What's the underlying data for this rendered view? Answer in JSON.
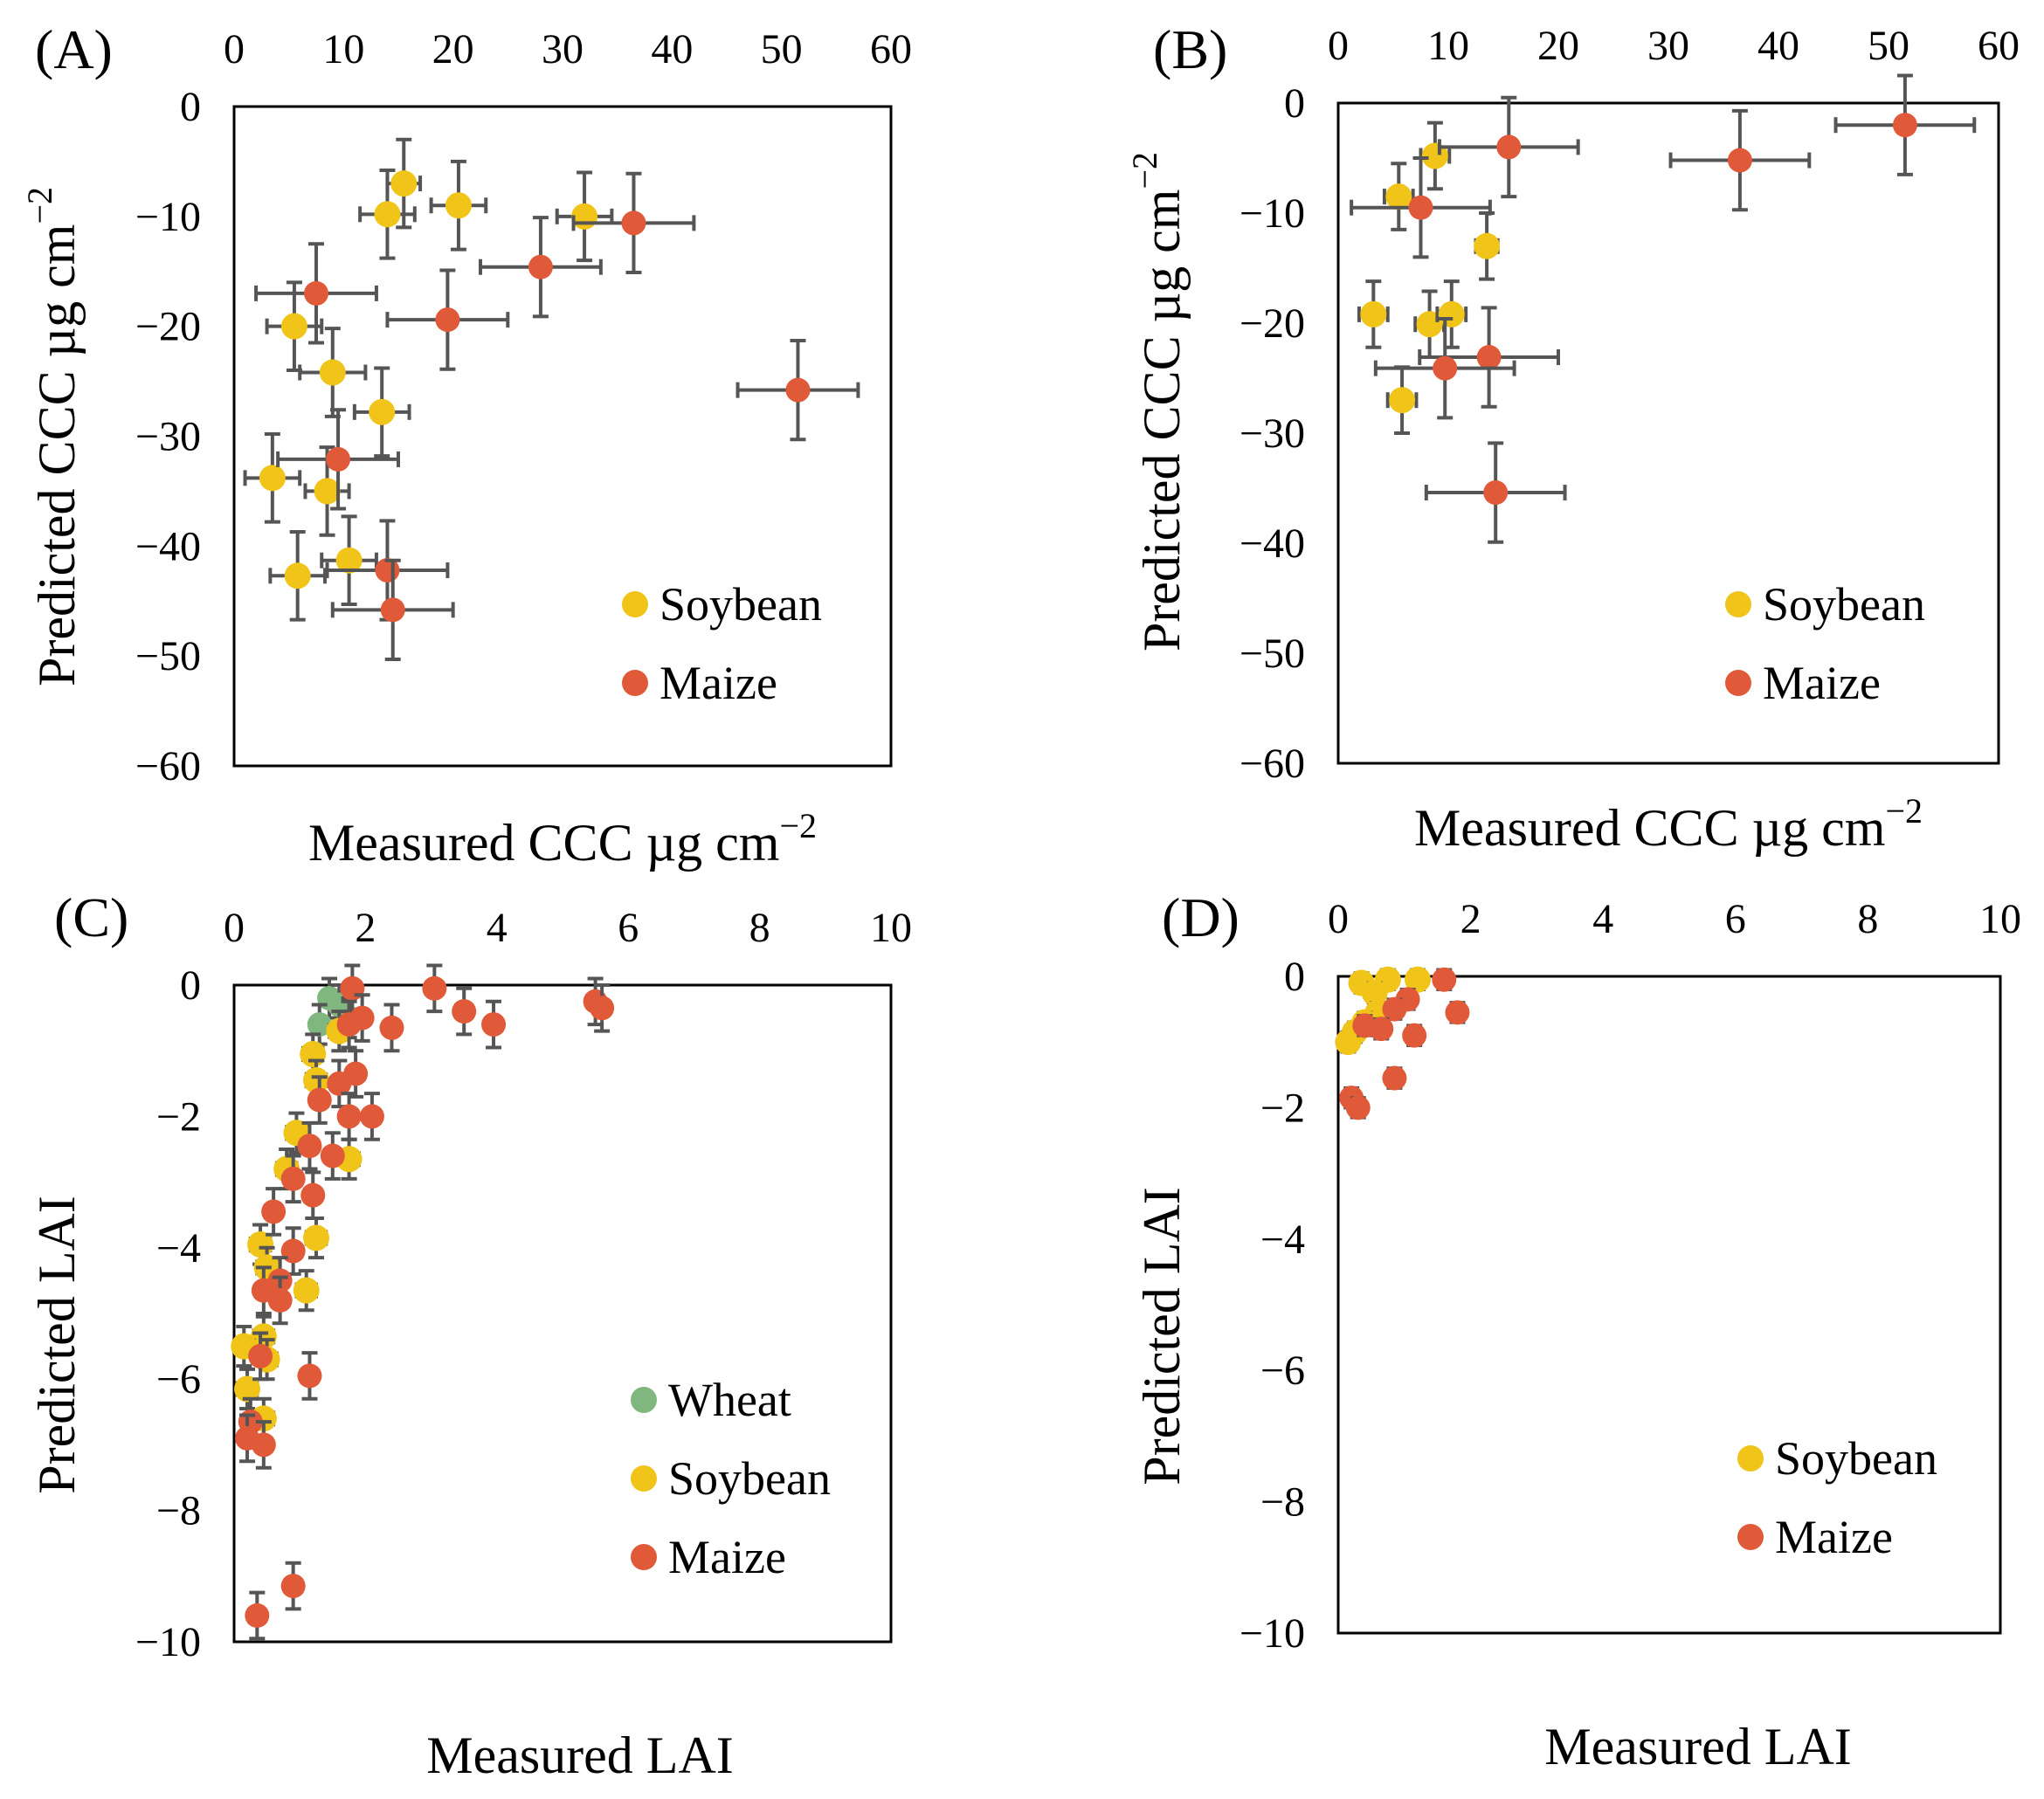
{
  "colors": {
    "wheat": "#7fb77e",
    "soybean": "#f0c419",
    "maize": "#e05a3a",
    "errorbar": "#555555"
  },
  "chart_data": [
    {
      "id": "A",
      "type": "scatter",
      "panel_label": "(A)",
      "xlabel": "Measured CCC µg cm",
      "ylabel": "Predicted CCC µg cm",
      "unit_exponent": "−2",
      "xlim": [
        0,
        60
      ],
      "ylim": [
        -60,
        0
      ],
      "xticks": [
        0,
        10,
        20,
        30,
        40,
        50,
        60
      ],
      "xtick_labels": [
        "0",
        "10",
        "20",
        "30",
        "40",
        "50",
        "60"
      ],
      "yticks": [
        0,
        -10,
        -20,
        -30,
        -40,
        -50,
        -60
      ],
      "ytick_labels": [
        "0",
        "−10",
        "−20",
        "−30",
        "−40",
        "−50",
        "−60"
      ],
      "legend_position": "bottom-right",
      "series": [
        {
          "name": "Soybean",
          "color_key": "soybean",
          "points": [
            {
              "x": 15.5,
              "y": -7,
              "xe": 1.5,
              "ye": 4
            },
            {
              "x": 14,
              "y": -9.8,
              "xe": 2.5,
              "ye": 4
            },
            {
              "x": 20.5,
              "y": -9,
              "xe": 2.5,
              "ye": 4
            },
            {
              "x": 32,
              "y": -10,
              "xe": 2.5,
              "ye": 4
            },
            {
              "x": 5.5,
              "y": -20,
              "xe": 2.5,
              "ye": 4
            },
            {
              "x": 9,
              "y": -24.2,
              "xe": 3,
              "ye": 4
            },
            {
              "x": 13.5,
              "y": -27.8,
              "xe": 2.5,
              "ye": 4
            },
            {
              "x": 3.5,
              "y": -33.8,
              "xe": 2.5,
              "ye": 4
            },
            {
              "x": 8.5,
              "y": -35,
              "xe": 2,
              "ye": 4
            },
            {
              "x": 5.8,
              "y": -42.7,
              "xe": 2.5,
              "ye": 4
            },
            {
              "x": 10.5,
              "y": -41.3,
              "xe": 2.5,
              "ye": 4
            }
          ]
        },
        {
          "name": "Maize",
          "color_key": "maize",
          "points": [
            {
              "x": 36.5,
              "y": -10.6,
              "xe": 5.5,
              "ye": 4.5
            },
            {
              "x": 28,
              "y": -14.6,
              "xe": 5.5,
              "ye": 4.5
            },
            {
              "x": 7.5,
              "y": -17,
              "xe": 5.5,
              "ye": 4.5
            },
            {
              "x": 19.5,
              "y": -19.4,
              "xe": 5.5,
              "ye": 4.5
            },
            {
              "x": 51.5,
              "y": -25.8,
              "xe": 5.5,
              "ye": 4.5
            },
            {
              "x": 9.5,
              "y": -32.1,
              "xe": 5.5,
              "ye": 4.5
            },
            {
              "x": 14,
              "y": -42.2,
              "xe": 5.5,
              "ye": 4.5
            },
            {
              "x": 14.5,
              "y": -45.8,
              "xe": 5.5,
              "ye": 4.5
            }
          ]
        }
      ]
    },
    {
      "id": "B",
      "type": "scatter",
      "panel_label": "(B)",
      "xlabel": "Measured CCC µg cm",
      "ylabel": "Predicted CCC µg cm",
      "unit_exponent": "−2",
      "xlim": [
        0,
        60
      ],
      "ylim": [
        -60,
        0
      ],
      "xticks": [
        0,
        10,
        20,
        30,
        40,
        50,
        60
      ],
      "xtick_labels": [
        "0",
        "10",
        "20",
        "30",
        "40",
        "50",
        "60"
      ],
      "yticks": [
        0,
        -10,
        -20,
        -30,
        -40,
        -50,
        -60
      ],
      "ytick_labels": [
        "0",
        "−10",
        "−20",
        "−30",
        "−40",
        "−50",
        "−60"
      ],
      "legend_position": "bottom-right",
      "series": [
        {
          "name": "Soybean",
          "color_key": "soybean",
          "points": [
            {
              "x": 8.8,
              "y": -4.8,
              "xe": 1.3,
              "ye": 3
            },
            {
              "x": 5.5,
              "y": -8.5,
              "xe": 1.3,
              "ye": 3
            },
            {
              "x": 13.5,
              "y": -13,
              "xe": 1,
              "ye": 3
            },
            {
              "x": 3.2,
              "y": -19.2,
              "xe": 1.3,
              "ye": 3
            },
            {
              "x": 8.3,
              "y": -20.1,
              "xe": 1.3,
              "ye": 3
            },
            {
              "x": 10.3,
              "y": -19.2,
              "xe": 1.3,
              "ye": 3
            },
            {
              "x": 5.8,
              "y": -27,
              "xe": 1.3,
              "ye": 3
            }
          ]
        },
        {
          "name": "Maize",
          "color_key": "maize",
          "points": [
            {
              "x": 51.5,
              "y": -2,
              "xe": 6.3,
              "ye": 4.5
            },
            {
              "x": 15.5,
              "y": -4,
              "xe": 6.3,
              "ye": 4.5
            },
            {
              "x": 36.5,
              "y": -5.2,
              "xe": 6.3,
              "ye": 4.5
            },
            {
              "x": 7.5,
              "y": -9.5,
              "xe": 6.3,
              "ye": 4.5
            },
            {
              "x": 13.7,
              "y": -23.1,
              "xe": 6.3,
              "ye": 4.5
            },
            {
              "x": 9.7,
              "y": -24.1,
              "xe": 6.3,
              "ye": 4.5
            },
            {
              "x": 14.3,
              "y": -35.4,
              "xe": 6.3,
              "ye": 4.5
            }
          ]
        }
      ]
    },
    {
      "id": "C",
      "type": "scatter",
      "panel_label": "(C)",
      "xlabel": "Measured LAI",
      "ylabel": "Predicted LAI",
      "unit_exponent": "",
      "xlim": [
        0,
        10
      ],
      "ylim": [
        -10,
        0
      ],
      "xticks": [
        0,
        2,
        4,
        6,
        8,
        10
      ],
      "xtick_labels": [
        "0",
        "2",
        "4",
        "6",
        "8",
        "10"
      ],
      "yticks": [
        0,
        -2,
        -4,
        -6,
        -8,
        -10
      ],
      "ytick_labels": [
        "0",
        "−2",
        "−4",
        "−6",
        "−8",
        "−10"
      ],
      "legend_position": "bottom-right",
      "series": [
        {
          "name": "Wheat",
          "color_key": "wheat",
          "points": [
            {
              "x": 1.45,
              "y": -0.2,
              "xe": 0.1,
              "ye": 0.3
            },
            {
              "x": 1.6,
              "y": -0.3,
              "xe": 0.1,
              "ye": 0.3
            },
            {
              "x": 1.3,
              "y": -0.6,
              "xe": 0.1,
              "ye": 0.3
            },
            {
              "x": 1.75,
              "y": -0.5,
              "xe": 0.1,
              "ye": 0.3
            }
          ]
        },
        {
          "name": "Soybean",
          "color_key": "soybean",
          "points": [
            {
              "x": 1.6,
              "y": -0.7,
              "xe": 0.15,
              "ye": 0.3
            },
            {
              "x": 1.2,
              "y": -1.05,
              "xe": 0.15,
              "ye": 0.3
            },
            {
              "x": 1.25,
              "y": -1.45,
              "xe": 0.15,
              "ye": 0.3
            },
            {
              "x": 0.95,
              "y": -2.25,
              "xe": 0.15,
              "ye": 0.3
            },
            {
              "x": 0.8,
              "y": -2.8,
              "xe": 0.15,
              "ye": 0.3
            },
            {
              "x": 1.75,
              "y": -2.65,
              "xe": 0.15,
              "ye": 0.3
            },
            {
              "x": 1.25,
              "y": -3.85,
              "xe": 0.15,
              "ye": 0.3
            },
            {
              "x": 0.4,
              "y": -3.95,
              "xe": 0.15,
              "ye": 0.3
            },
            {
              "x": 0.5,
              "y": -4.3,
              "xe": 0.15,
              "ye": 0.3
            },
            {
              "x": 1.1,
              "y": -4.65,
              "xe": 0.15,
              "ye": 0.3
            },
            {
              "x": 0.45,
              "y": -5.35,
              "xe": 0.15,
              "ye": 0.3
            },
            {
              "x": 0.15,
              "y": -5.5,
              "xe": 0.15,
              "ye": 0.3
            },
            {
              "x": 0.5,
              "y": -5.7,
              "xe": 0.15,
              "ye": 0.3
            },
            {
              "x": 0.2,
              "y": -6.15,
              "xe": 0.15,
              "ye": 0.3
            },
            {
              "x": 0.45,
              "y": -6.6,
              "xe": 0.15,
              "ye": 0.3
            }
          ]
        },
        {
          "name": "Maize",
          "color_key": "maize",
          "points": [
            {
              "x": 1.8,
              "y": -0.05,
              "xe": 0.12,
              "ye": 0.35
            },
            {
              "x": 3.05,
              "y": -0.05,
              "xe": 0.12,
              "ye": 0.35
            },
            {
              "x": 5.5,
              "y": -0.25,
              "xe": 0.12,
              "ye": 0.35
            },
            {
              "x": 5.6,
              "y": -0.35,
              "xe": 0.12,
              "ye": 0.35
            },
            {
              "x": 3.5,
              "y": -0.4,
              "xe": 0.12,
              "ye": 0.35
            },
            {
              "x": 3.95,
              "y": -0.6,
              "xe": 0.12,
              "ye": 0.35
            },
            {
              "x": 2.4,
              "y": -0.65,
              "xe": 0.12,
              "ye": 0.35
            },
            {
              "x": 1.95,
              "y": -0.5,
              "xe": 0.12,
              "ye": 0.35
            },
            {
              "x": 1.75,
              "y": -0.6,
              "xe": 0.12,
              "ye": 0.35
            },
            {
              "x": 1.85,
              "y": -1.35,
              "xe": 0.12,
              "ye": 0.35
            },
            {
              "x": 1.6,
              "y": -1.5,
              "xe": 0.12,
              "ye": 0.35
            },
            {
              "x": 1.3,
              "y": -1.75,
              "xe": 0.12,
              "ye": 0.35
            },
            {
              "x": 1.75,
              "y": -2.0,
              "xe": 0.12,
              "ye": 0.35
            },
            {
              "x": 2.1,
              "y": -2.0,
              "xe": 0.12,
              "ye": 0.35
            },
            {
              "x": 1.15,
              "y": -2.45,
              "xe": 0.12,
              "ye": 0.35
            },
            {
              "x": 1.5,
              "y": -2.6,
              "xe": 0.12,
              "ye": 0.35
            },
            {
              "x": 0.9,
              "y": -2.95,
              "xe": 0.12,
              "ye": 0.35
            },
            {
              "x": 1.2,
              "y": -3.2,
              "xe": 0.12,
              "ye": 0.35
            },
            {
              "x": 0.6,
              "y": -3.45,
              "xe": 0.12,
              "ye": 0.35
            },
            {
              "x": 0.9,
              "y": -4.05,
              "xe": 0.12,
              "ye": 0.35
            },
            {
              "x": 0.7,
              "y": -4.5,
              "xe": 0.12,
              "ye": 0.35
            },
            {
              "x": 0.45,
              "y": -4.65,
              "xe": 0.12,
              "ye": 0.35
            },
            {
              "x": 0.7,
              "y": -4.8,
              "xe": 0.12,
              "ye": 0.35
            },
            {
              "x": 0.4,
              "y": -5.65,
              "xe": 0.12,
              "ye": 0.35
            },
            {
              "x": 1.15,
              "y": -5.95,
              "xe": 0.12,
              "ye": 0.35
            },
            {
              "x": 0.25,
              "y": -6.65,
              "xe": 0.12,
              "ye": 0.35
            },
            {
              "x": 0.2,
              "y": -6.9,
              "xe": 0.12,
              "ye": 0.35
            },
            {
              "x": 0.45,
              "y": -7.0,
              "xe": 0.12,
              "ye": 0.35
            },
            {
              "x": 0.9,
              "y": -9.15,
              "xe": 0.12,
              "ye": 0.35
            },
            {
              "x": 0.35,
              "y": -9.6,
              "xe": 0.12,
              "ye": 0.35
            }
          ]
        }
      ]
    },
    {
      "id": "D",
      "type": "scatter",
      "panel_label": "(D)",
      "xlabel": "Measured LAI",
      "ylabel": "Predicted LAI",
      "unit_exponent": "",
      "xlim": [
        0,
        10
      ],
      "ylim": [
        -10,
        0
      ],
      "xticks": [
        0,
        2,
        4,
        6,
        8,
        10
      ],
      "xtick_labels": [
        "0",
        "2",
        "4",
        "6",
        "8",
        "10"
      ],
      "yticks": [
        0,
        -2,
        -4,
        -6,
        -8,
        -10
      ],
      "ytick_labels": [
        "0",
        "−2",
        "−4",
        "−6",
        "−8",
        "−10"
      ],
      "legend_position": "bottom-right",
      "series": [
        {
          "name": "Soybean",
          "color_key": "soybean",
          "points": [
            {
              "x": 0.35,
              "y": -0.1,
              "xe": 0.1,
              "ye": 0.15
            },
            {
              "x": 0.75,
              "y": -0.05,
              "xe": 0.1,
              "ye": 0.15
            },
            {
              "x": 1.2,
              "y": -0.05,
              "xe": 0.1,
              "ye": 0.15
            },
            {
              "x": 0.55,
              "y": -0.25,
              "xe": 0.1,
              "ye": 0.15
            },
            {
              "x": 0.6,
              "y": -0.55,
              "xe": 0.1,
              "ye": 0.15
            },
            {
              "x": 0.4,
              "y": -0.7,
              "xe": 0.1,
              "ye": 0.15
            },
            {
              "x": 0.25,
              "y": -0.85,
              "xe": 0.1,
              "ye": 0.15
            },
            {
              "x": 0.15,
              "y": -1.0,
              "xe": 0.1,
              "ye": 0.15
            }
          ]
        },
        {
          "name": "Maize",
          "color_key": "maize",
          "points": [
            {
              "x": 1.6,
              "y": -0.05,
              "xe": 0.1,
              "ye": 0.15
            },
            {
              "x": 1.05,
              "y": -0.35,
              "xe": 0.1,
              "ye": 0.15
            },
            {
              "x": 0.85,
              "y": -0.5,
              "xe": 0.1,
              "ye": 0.15
            },
            {
              "x": 1.8,
              "y": -0.55,
              "xe": 0.1,
              "ye": 0.15
            },
            {
              "x": 0.4,
              "y": -0.75,
              "xe": 0.1,
              "ye": 0.15
            },
            {
              "x": 0.65,
              "y": -0.8,
              "xe": 0.1,
              "ye": 0.15
            },
            {
              "x": 1.15,
              "y": -0.9,
              "xe": 0.1,
              "ye": 0.15
            },
            {
              "x": 0.85,
              "y": -1.55,
              "xe": 0.1,
              "ye": 0.15
            },
            {
              "x": 0.2,
              "y": -1.85,
              "xe": 0.1,
              "ye": 0.15
            },
            {
              "x": 0.3,
              "y": -2.0,
              "xe": 0.1,
              "ye": 0.15
            }
          ]
        }
      ]
    }
  ]
}
